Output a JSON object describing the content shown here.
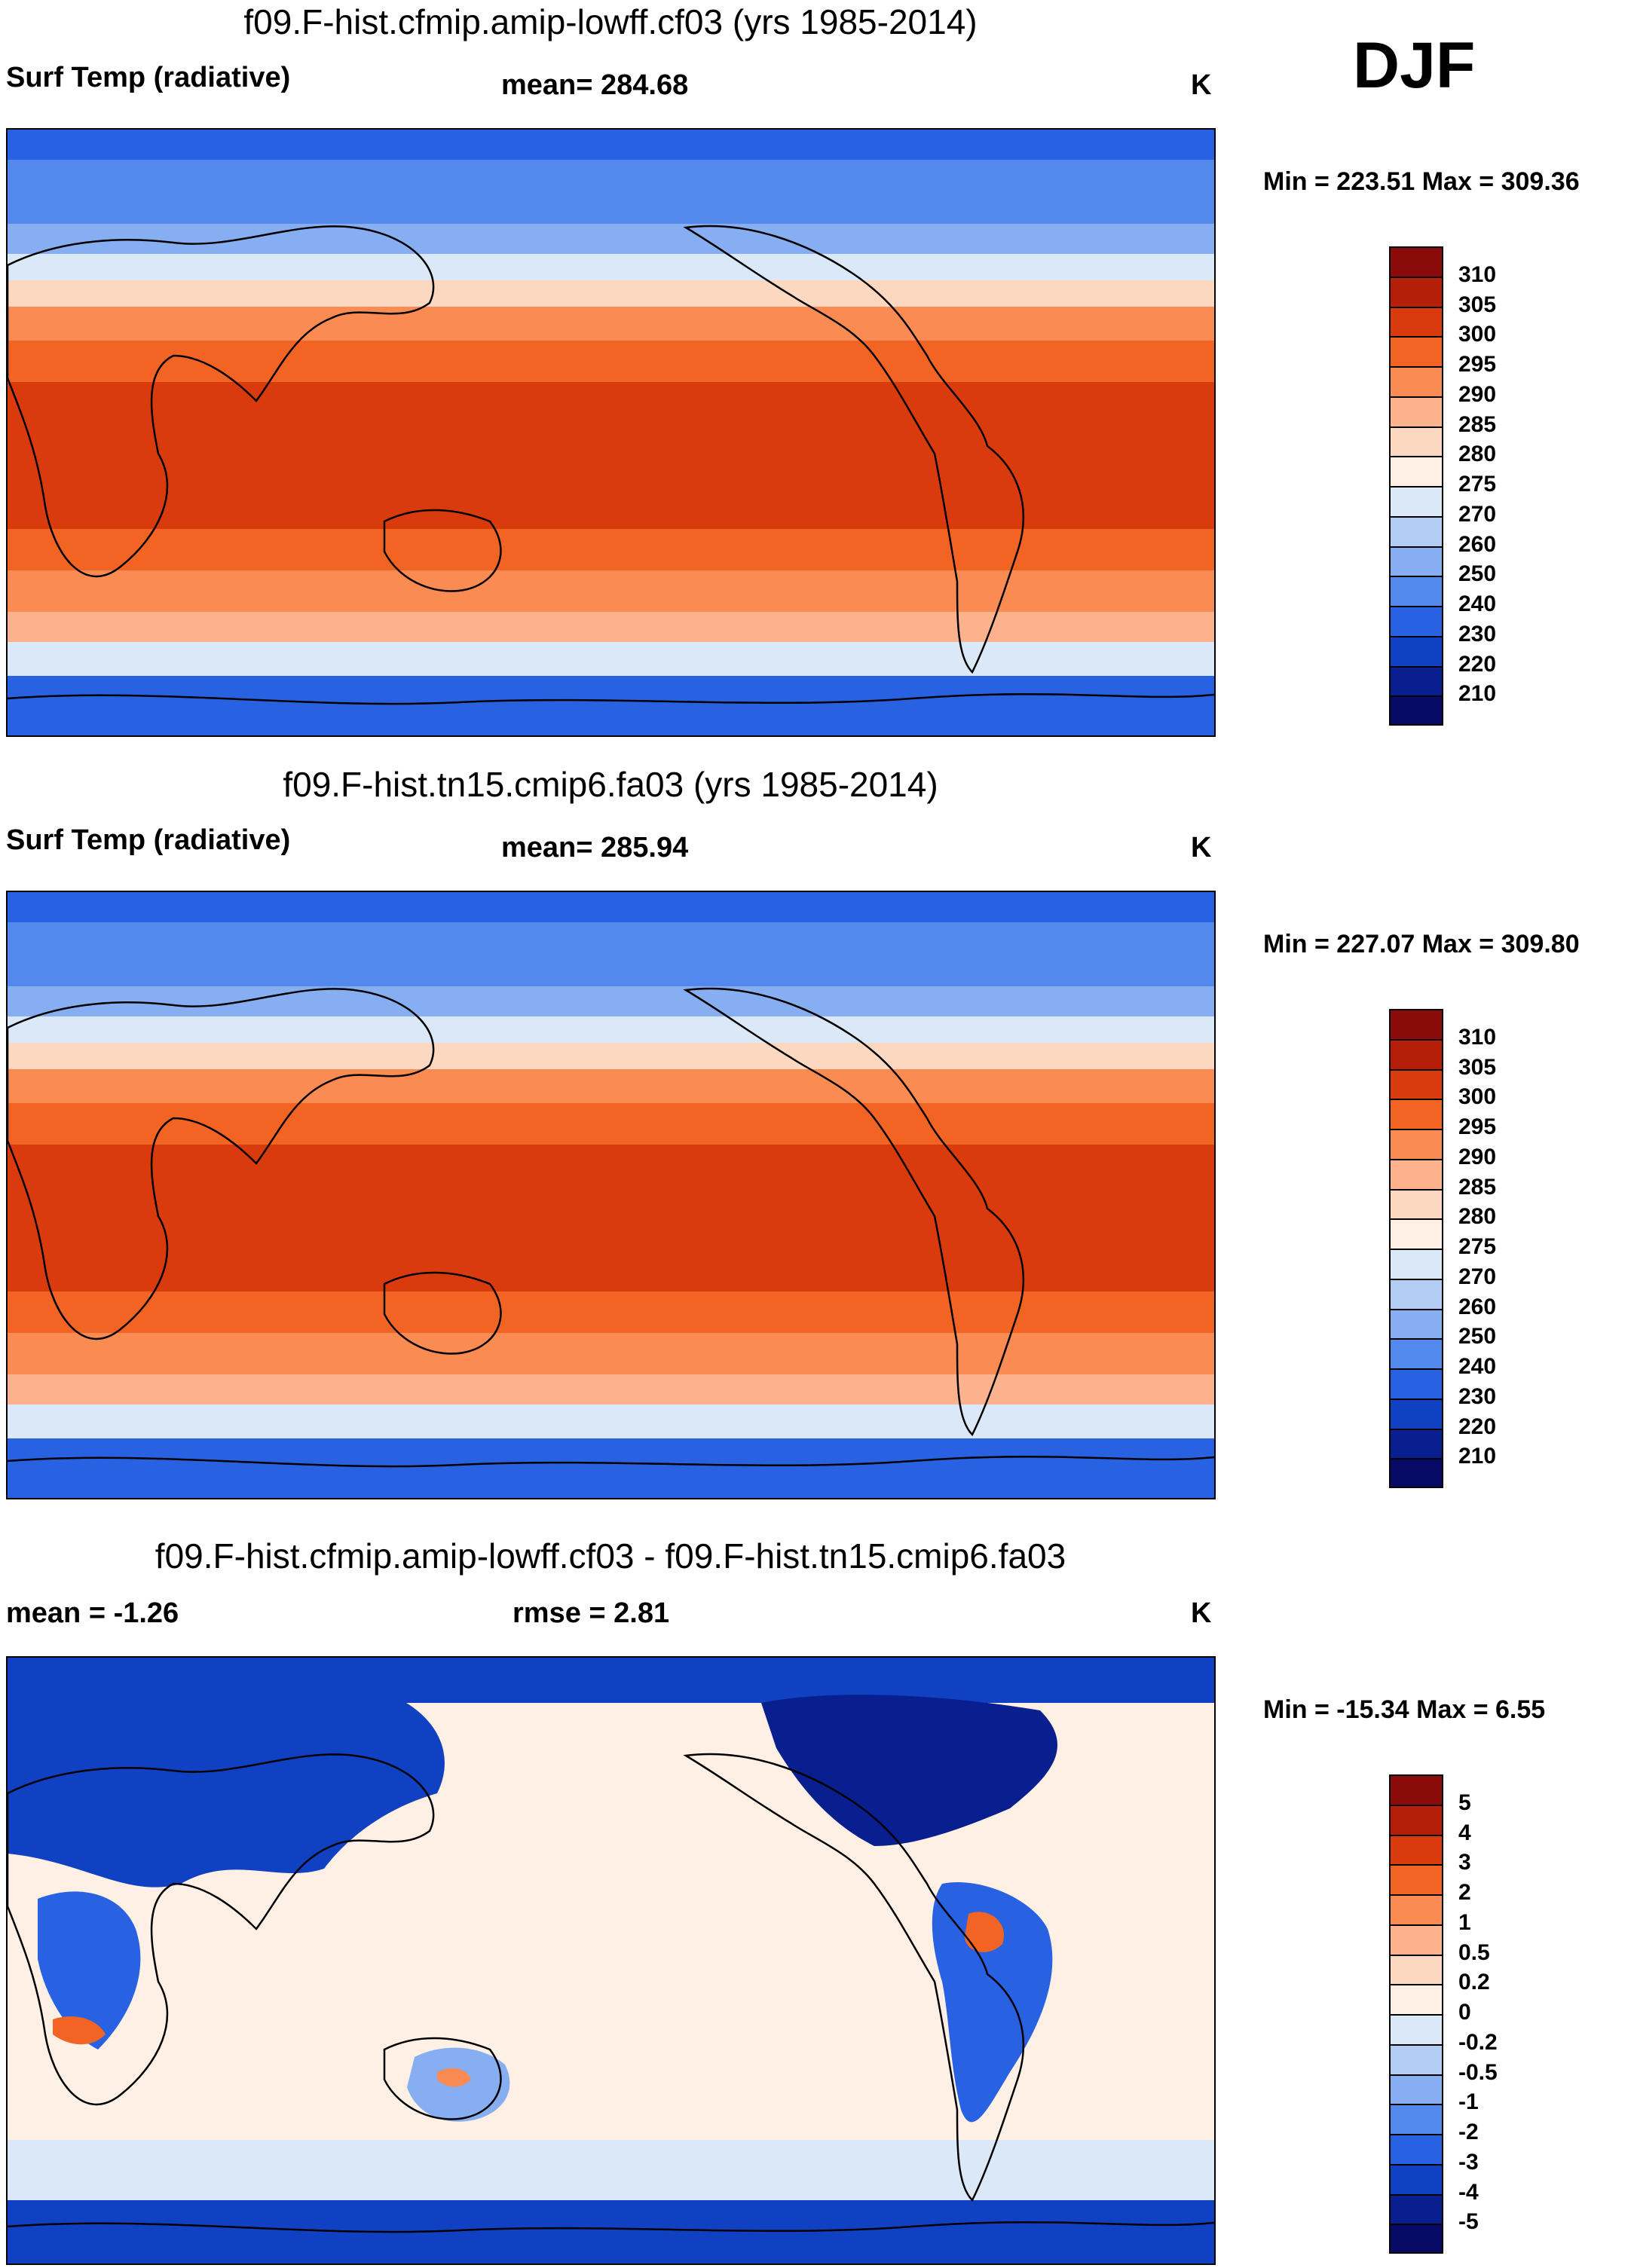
{
  "season_label": "DJF",
  "chart_data": [
    {
      "type": "heatmap",
      "title": "f09.F-hist.cfmip.amip-lowff.cf03 (yrs 1985-2014)",
      "left_string": "Surf Temp (radiative)",
      "center_string": "mean= 284.68",
      "right_string": "K",
      "min_max": "Min = 223.51 Max = 309.36",
      "colorbar": {
        "labels": [
          "310",
          "305",
          "300",
          "295",
          "290",
          "285",
          "280",
          "275",
          "270",
          "260",
          "250",
          "240",
          "230",
          "220",
          "210"
        ],
        "colors": [
          "#8b0a0a",
          "#b51f0a",
          "#da3b0c",
          "#f26424",
          "#f98b53",
          "#fcb28d",
          "#fdd8c0",
          "#fff0e6",
          "#dae8f8",
          "#b3cdf4",
          "#86aef0",
          "#5388ec",
          "#2862e3",
          "#1041c2",
          "#0a1f8f",
          "#080b66"
        ]
      },
      "field": {
        "variable": "Surf Temp (radiative)",
        "units": "K",
        "mean": 284.68,
        "min": 223.51,
        "max": 309.36
      }
    },
    {
      "type": "heatmap",
      "title": "f09.F-hist.tn15.cmip6.fa03 (yrs 1985-2014)",
      "left_string": "Surf Temp (radiative)",
      "center_string": "mean= 285.94",
      "right_string": "K",
      "min_max": "Min = 227.07 Max = 309.80",
      "colorbar": {
        "labels": [
          "310",
          "305",
          "300",
          "295",
          "290",
          "285",
          "280",
          "275",
          "270",
          "260",
          "250",
          "240",
          "230",
          "220",
          "210"
        ],
        "colors": [
          "#8b0a0a",
          "#b51f0a",
          "#da3b0c",
          "#f26424",
          "#f98b53",
          "#fcb28d",
          "#fdd8c0",
          "#fff0e6",
          "#dae8f8",
          "#b3cdf4",
          "#86aef0",
          "#5388ec",
          "#2862e3",
          "#1041c2",
          "#0a1f8f",
          "#080b66"
        ]
      },
      "field": {
        "variable": "Surf Temp (radiative)",
        "units": "K",
        "mean": 285.94,
        "min": 227.07,
        "max": 309.8
      }
    },
    {
      "type": "heatmap",
      "title": "f09.F-hist.cfmip.amip-lowff.cf03 - f09.F-hist.tn15.cmip6.fa03",
      "left_string": "mean =  -1.26",
      "center_string": "rmse =   2.81",
      "right_string": "K",
      "min_max": "Min = -15.34 Max =   6.55",
      "colorbar": {
        "labels": [
          "5",
          "4",
          "3",
          "2",
          "1",
          "0.5",
          "0.2",
          "0",
          "-0.2",
          "-0.5",
          "-1",
          "-2",
          "-3",
          "-4",
          "-5"
        ],
        "colors": [
          "#8b0a0a",
          "#b51f0a",
          "#da3b0c",
          "#f26424",
          "#f98b53",
          "#fcb28d",
          "#fdd8c0",
          "#fff0e6",
          "#dae8f8",
          "#b3cdf4",
          "#86aef0",
          "#5388ec",
          "#2862e3",
          "#1041c2",
          "#0a1f8f",
          "#080b66"
        ]
      },
      "field": {
        "variable": "difference",
        "units": "K",
        "mean": -1.26,
        "rmse": 2.81,
        "min": -15.34,
        "max": 6.55
      }
    }
  ]
}
